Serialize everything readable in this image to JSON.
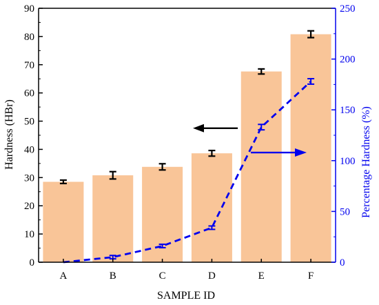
{
  "chart_data": {
    "type": "bar",
    "xlabel": "SAMPLE ID",
    "categories": [
      "A",
      "B",
      "C",
      "D",
      "E",
      "F"
    ],
    "y_left": {
      "label": "Hardness (HBr)",
      "ylim": [
        0,
        90
      ],
      "ticks": [
        "0",
        "10",
        "20",
        "30",
        "40",
        "50",
        "60",
        "70",
        "80",
        "90"
      ]
    },
    "y_right": {
      "label": "Percentage Hardness (%)",
      "ylim": [
        0,
        250
      ],
      "ticks": [
        "0",
        "50",
        "100",
        "150",
        "200",
        "250"
      ]
    },
    "series": [
      {
        "type": "bar",
        "axis": "left",
        "values": [
          28.5,
          30.8,
          33.8,
          38.6,
          67.6,
          80.8
        ],
        "errors": [
          0.6,
          1.3,
          1.1,
          1.0,
          0.9,
          1.2
        ],
        "color": "#f9c598"
      },
      {
        "type": "line",
        "axis": "right",
        "style": "dashed",
        "values": [
          0,
          5,
          16,
          34,
          133,
          178
        ],
        "errors": [
          0,
          1,
          1,
          1,
          2,
          2
        ],
        "color": "#0000ee"
      }
    ],
    "annotations": [
      {
        "kind": "arrow",
        "direction": "left",
        "color": "#000000",
        "meaning": "bars read on left axis"
      },
      {
        "kind": "arrow",
        "direction": "right",
        "color": "#0000ee",
        "meaning": "line reads on right axis"
      }
    ],
    "grid": false,
    "legend": "none"
  }
}
